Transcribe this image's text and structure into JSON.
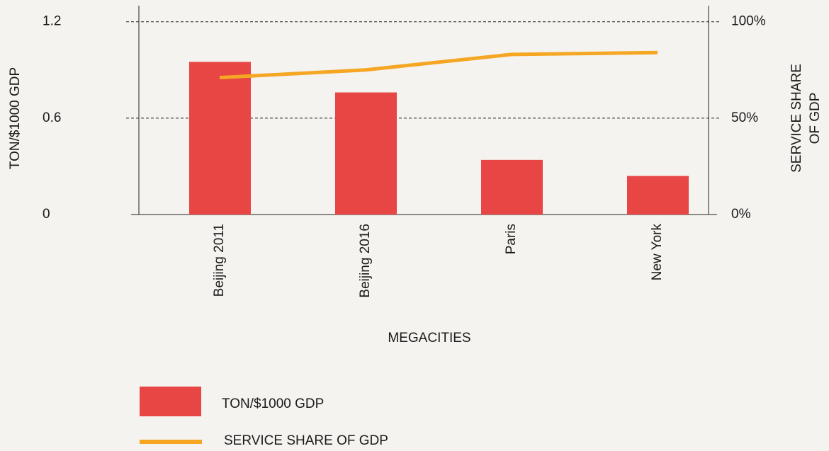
{
  "chart_data": {
    "type": "bar",
    "categories": [
      "Beijing 2011",
      "Beijing 2016",
      "Paris",
      "New York"
    ],
    "series": [
      {
        "name": "TON/$1000 GDP",
        "type": "bar",
        "color": "#e84545",
        "values": [
          0.95,
          0.76,
          0.34,
          0.24
        ]
      },
      {
        "name": "SERVICE SHARE OF GDP",
        "type": "line",
        "axis": "y2",
        "color": "#f5a623",
        "values": [
          71,
          75,
          83,
          84
        ]
      }
    ],
    "ylabel": "TON/$1000 GDP",
    "y2label": [
      "SERVICE SHARE",
      "OF GDP"
    ],
    "xlabel": "MEGACITIES",
    "ylim": [
      0,
      1.3
    ],
    "yticks": [
      0,
      0.6,
      1.2
    ],
    "y2lim": [
      0,
      108.3
    ],
    "y2ticks": [
      {
        "value": 0,
        "label": "0%"
      },
      {
        "value": 50,
        "label": "50%"
      },
      {
        "value": 100,
        "label": "100%"
      }
    ],
    "grid": true
  }
}
